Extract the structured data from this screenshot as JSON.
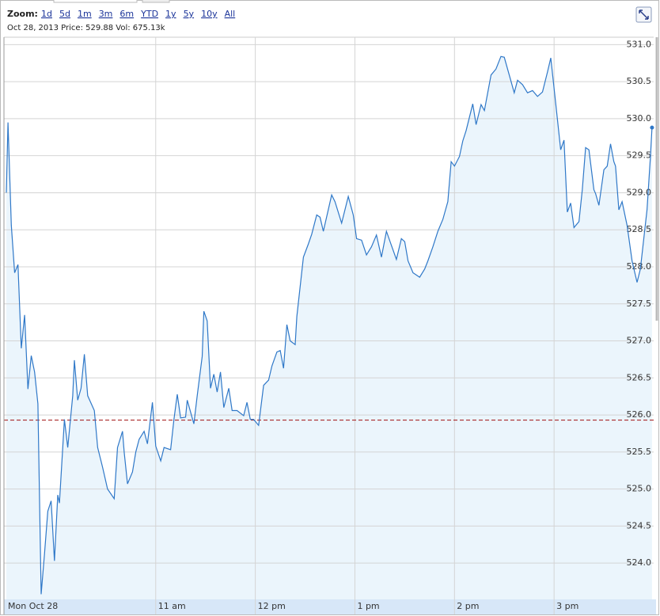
{
  "zoom_label": "Zoom:",
  "zoom_links": [
    "1d",
    "5d",
    "1m",
    "3m",
    "6m",
    "YTD",
    "1y",
    "5y",
    "10y",
    "All"
  ],
  "info": "Oct 28, 2013 Price: 529.88 Vol: 675.13k",
  "chart_data": {
    "type": "area",
    "x": [
      0,
      1,
      3,
      5,
      7,
      9,
      11,
      13,
      15,
      17,
      19,
      21,
      23,
      25,
      27,
      29,
      31,
      32,
      35,
      37,
      40,
      41,
      43,
      45,
      47,
      49,
      53,
      55,
      58,
      61,
      65,
      67,
      70,
      71,
      73,
      76,
      78,
      80,
      83,
      85,
      88,
      90,
      93,
      95,
      99,
      101,
      103,
      105,
      108,
      109,
      113,
      115,
      118,
      119,
      121,
      123,
      125,
      127,
      129,
      131,
      134,
      136,
      139,
      143,
      145,
      147,
      149,
      152,
      155,
      158,
      160,
      163,
      165,
      167,
      169,
      171,
      174,
      175,
      179,
      182,
      184,
      187,
      189,
      191,
      196,
      198,
      202,
      206,
      209,
      211,
      214,
      217,
      220,
      223,
      226,
      229,
      232,
      235,
      238,
      240,
      242,
      245,
      249,
      252,
      254,
      257,
      260,
      263,
      266,
      268,
      270,
      273,
      275,
      277,
      281,
      283,
      286,
      288,
      292,
      295,
      298,
      300,
      303,
      306,
      308,
      311,
      314,
      317,
      320,
      323,
      326,
      328,
      332,
      334,
      336,
      338,
      340,
      342,
      345,
      347,
      349,
      351,
      354,
      355,
      357,
      360,
      362,
      364,
      366,
      367,
      369,
      371,
      374,
      377,
      380,
      382,
      386,
      388,
      389
    ],
    "values": [
      529.0,
      529.95,
      528.56,
      527.92,
      528.03,
      526.9,
      527.35,
      526.35,
      526.8,
      526.58,
      526.15,
      523.58,
      524.12,
      524.7,
      524.84,
      524.03,
      524.92,
      524.81,
      525.94,
      525.56,
      526.26,
      526.74,
      526.2,
      526.36,
      526.82,
      526.26,
      526.06,
      525.56,
      525.29,
      525.0,
      524.87,
      525.56,
      525.78,
      525.5,
      525.07,
      525.23,
      525.5,
      525.67,
      525.78,
      525.61,
      526.17,
      525.58,
      525.38,
      525.56,
      525.53,
      525.94,
      526.28,
      525.96,
      525.97,
      526.2,
      525.88,
      526.26,
      526.79,
      527.4,
      527.27,
      526.36,
      526.55,
      526.31,
      526.58,
      526.1,
      526.36,
      526.06,
      526.06,
      525.99,
      526.17,
      525.94,
      525.94,
      525.86,
      526.4,
      526.47,
      526.66,
      526.85,
      526.87,
      526.63,
      527.22,
      527.0,
      526.95,
      527.33,
      528.13,
      528.31,
      528.44,
      528.7,
      528.67,
      528.48,
      528.97,
      528.88,
      528.59,
      528.95,
      528.7,
      528.38,
      528.36,
      528.16,
      528.27,
      528.43,
      528.13,
      528.48,
      528.29,
      528.1,
      528.38,
      528.34,
      528.08,
      527.92,
      527.86,
      527.97,
      528.08,
      528.27,
      528.48,
      528.64,
      528.88,
      529.42,
      529.36,
      529.49,
      529.7,
      529.84,
      530.2,
      529.92,
      530.19,
      530.11,
      530.59,
      530.67,
      530.84,
      530.83,
      530.59,
      530.35,
      530.52,
      530.46,
      530.35,
      530.38,
      530.3,
      530.36,
      530.63,
      530.82,
      530.0,
      529.58,
      529.71,
      528.74,
      528.86,
      528.53,
      528.61,
      529.04,
      529.61,
      529.58,
      529.04,
      528.99,
      528.83,
      529.31,
      529.36,
      529.66,
      529.42,
      529.36,
      528.77,
      528.88,
      528.56,
      528.08,
      527.79,
      527.97,
      528.77,
      529.47,
      529.88
    ],
    "color": "#2f78c8",
    "fill": "#ebf5fc",
    "reference_line": 525.93,
    "reference_color": "#a01010",
    "xlim": [
      0,
      390
    ],
    "xticks": [
      {
        "value": 0,
        "label": "Mon Oct 28"
      },
      {
        "value": 90,
        "label": "11 am"
      },
      {
        "value": 150,
        "label": "12 pm"
      },
      {
        "value": 210,
        "label": "1 pm"
      },
      {
        "value": 270,
        "label": "2 pm"
      },
      {
        "value": 330,
        "label": "3 pm"
      }
    ],
    "ylim": [
      523.51,
      531.1
    ],
    "yticks": [
      {
        "value": 524,
        "label": "524.0"
      },
      {
        "value": 524.5,
        "label": "524.5"
      },
      {
        "value": 525,
        "label": "525.0"
      },
      {
        "value": 525.5,
        "label": "525.5"
      },
      {
        "value": 526,
        "label": "526.0"
      },
      {
        "value": 526.5,
        "label": "526.5"
      },
      {
        "value": 527,
        "label": "527.0"
      },
      {
        "value": 527.5,
        "label": "527.5"
      },
      {
        "value": 528,
        "label": "528.0"
      },
      {
        "value": 528.5,
        "label": "528.5"
      },
      {
        "value": 529,
        "label": "529.0"
      },
      {
        "value": 529.5,
        "label": "529.5"
      },
      {
        "value": 530,
        "label": "530.0"
      },
      {
        "value": 530.5,
        "label": "530.5"
      },
      {
        "value": 531,
        "label": "531.0"
      }
    ],
    "grid": true
  }
}
